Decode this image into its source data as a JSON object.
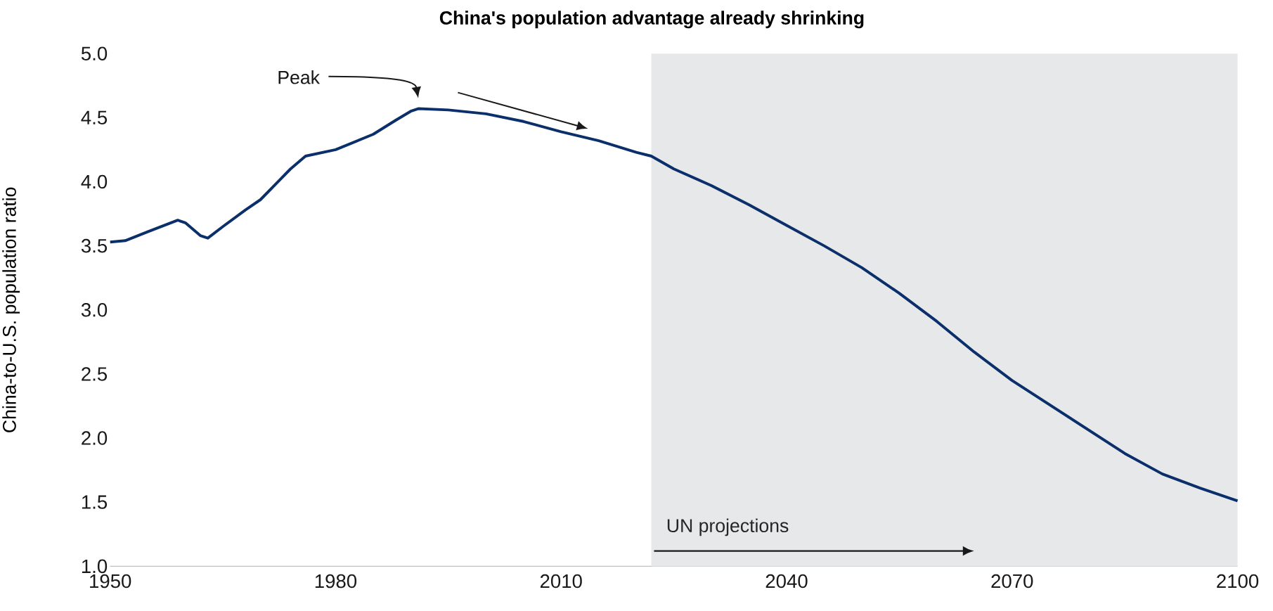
{
  "chart_data": {
    "type": "line",
    "title": "China's population advantage already shrinking",
    "ylabel": "China-to-U.S. population ratio",
    "x": [
      1950,
      1952,
      1955,
      1959,
      1960,
      1962,
      1963,
      1965,
      1968,
      1970,
      1974,
      1976,
      1980,
      1985,
      1988,
      1990,
      1991,
      1995,
      2000,
      2005,
      2010,
      2015,
      2020,
      2022,
      2025,
      2030,
      2035,
      2040,
      2045,
      2050,
      2055,
      2060,
      2065,
      2070,
      2075,
      2080,
      2085,
      2090,
      2095,
      2100
    ],
    "series": [
      {
        "color": "#0b2f6b",
        "values": [
          3.53,
          3.54,
          3.61,
          3.7,
          3.68,
          3.58,
          3.56,
          3.65,
          3.78,
          3.86,
          4.1,
          4.2,
          4.25,
          4.37,
          4.48,
          4.55,
          4.57,
          4.56,
          4.53,
          4.47,
          4.39,
          4.32,
          4.23,
          4.2,
          4.1,
          3.97,
          3.82,
          3.66,
          3.5,
          3.33,
          3.13,
          2.91,
          2.67,
          2.45,
          2.26,
          2.07,
          1.88,
          1.72,
          1.61,
          1.51
        ]
      }
    ],
    "xlim": [
      1950,
      2100
    ],
    "ylim": [
      1,
      5
    ],
    "xticks": [
      1950,
      1980,
      2010,
      2040,
      2070,
      2100
    ],
    "yticks": [
      {
        "value": 1,
        "label": "1.0"
      },
      {
        "value": 1.5,
        "label": "1.5"
      },
      {
        "value": 2,
        "label": "2.0"
      },
      {
        "value": 2.5,
        "label": "2.5"
      },
      {
        "value": 3,
        "label": "3.0"
      },
      {
        "value": 3.5,
        "label": "3.5"
      },
      {
        "value": 4,
        "label": "4.0"
      },
      {
        "value": 4.5,
        "label": "4.5"
      },
      {
        "value": 5,
        "label": "5.0"
      }
    ],
    "bands": [
      {
        "axis": "x",
        "from": 2022,
        "to": 2100,
        "label": "UN projections",
        "color": "#e7e8ea"
      }
    ],
    "annotations": [
      "Peak"
    ],
    "grid": false,
    "marker": "none",
    "line_style": "solid"
  }
}
